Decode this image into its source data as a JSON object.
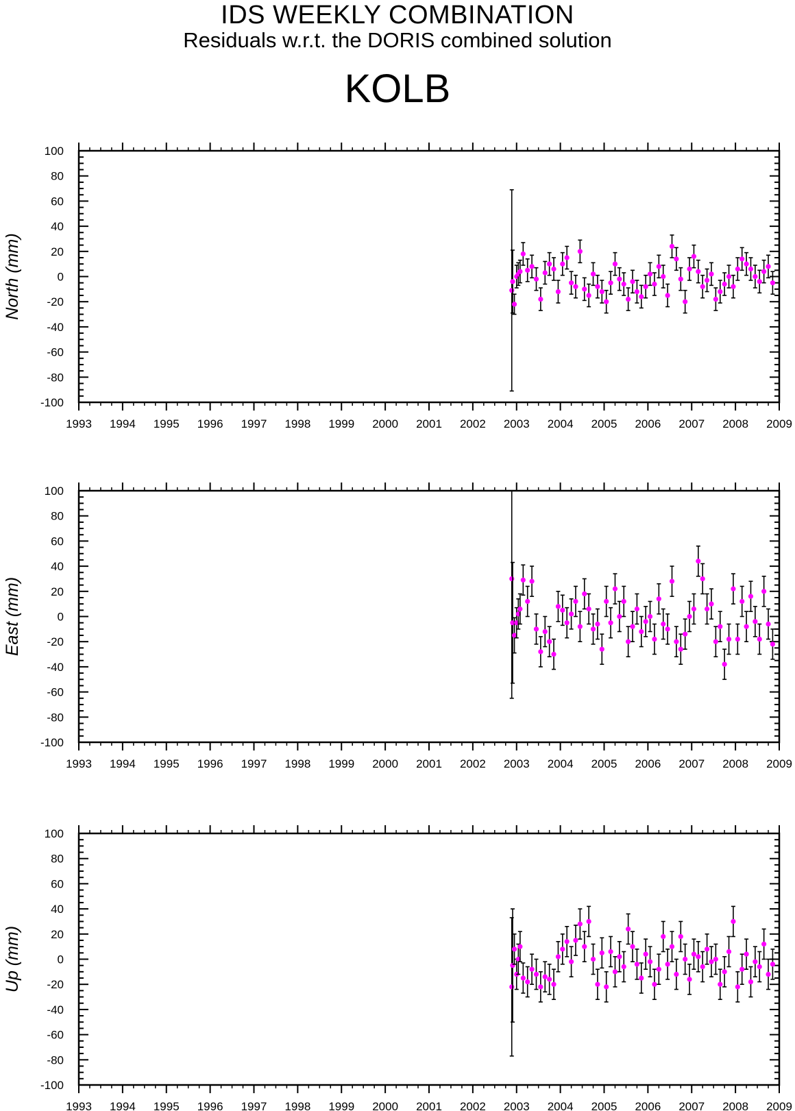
{
  "header": {
    "title": "IDS WEEKLY COMBINATION",
    "subtitle": "Residuals w.r.t. the DORIS combined solution",
    "station": "KOLB"
  },
  "colors": {
    "point": "#ff00ff",
    "errorbar": "#000000",
    "axes": "#000000"
  },
  "chart_data": [
    {
      "type": "scatter",
      "title": "",
      "ylabel": "North (mm)",
      "xlabel": "",
      "xlim": [
        1993,
        2009
      ],
      "ylim": [
        -100,
        100
      ],
      "x_ticks": [
        "1993",
        "1994",
        "1995",
        "1996",
        "1997",
        "1998",
        "1999",
        "2000",
        "2001",
        "2002",
        "2003",
        "2004",
        "2005",
        "2006",
        "2007",
        "2008",
        "2009"
      ],
      "y_ticks": [
        "100",
        "80",
        "60",
        "40",
        "20",
        "0",
        "-20",
        "-40",
        "-60",
        "-80",
        "-100"
      ],
      "series": [
        {
          "x": [
            2002.89,
            2002.91,
            2002.95,
            2003.0,
            2003.04,
            2003.08,
            2003.15,
            2003.25,
            2003.35,
            2003.45,
            2003.55,
            2003.65,
            2003.75,
            2003.85,
            2003.95,
            2004.05,
            2004.15,
            2004.25,
            2004.35,
            2004.45,
            2004.55,
            2004.65,
            2004.75,
            2004.85,
            2004.95,
            2005.05,
            2005.15,
            2005.25,
            2005.35,
            2005.45,
            2005.55,
            2005.65,
            2005.75,
            2005.85,
            2005.95,
            2006.05,
            2006.15,
            2006.25,
            2006.35,
            2006.45,
            2006.55,
            2006.65,
            2006.75,
            2006.85,
            2006.95,
            2007.05,
            2007.15,
            2007.25,
            2007.35,
            2007.45,
            2007.55,
            2007.65,
            2007.75,
            2007.85,
            2007.95,
            2008.05,
            2008.15,
            2008.25,
            2008.35,
            2008.45,
            2008.55,
            2008.65,
            2008.75,
            2008.85
          ],
          "y": [
            -11,
            -4,
            -22,
            0,
            2,
            4,
            18,
            5,
            8,
            -2,
            -18,
            3,
            10,
            6,
            -12,
            10,
            15,
            -5,
            -8,
            20,
            -10,
            -15,
            2,
            -8,
            -12,
            -20,
            -5,
            10,
            -2,
            -6,
            -18,
            -4,
            -12,
            -16,
            -8,
            2,
            -6,
            8,
            0,
            -15,
            24,
            14,
            -2,
            -20,
            6,
            16,
            4,
            -8,
            -3,
            2,
            -18,
            -12,
            -6,
            0,
            -8,
            6,
            14,
            10,
            6,
            0,
            -4,
            4,
            8,
            -5
          ],
          "err": [
            80,
            25,
            8,
            9,
            9,
            9,
            9,
            9,
            9,
            9,
            9,
            9,
            9,
            9,
            9,
            9,
            9,
            9,
            9,
            9,
            9,
            9,
            9,
            9,
            9,
            9,
            9,
            9,
            9,
            9,
            9,
            9,
            9,
            9,
            9,
            9,
            9,
            9,
            9,
            9,
            9,
            9,
            9,
            9,
            9,
            9,
            9,
            9,
            9,
            9,
            9,
            9,
            9,
            9,
            9,
            9,
            9,
            9,
            9,
            9,
            9,
            9,
            9,
            9
          ]
        }
      ]
    },
    {
      "type": "scatter",
      "title": "",
      "ylabel": "East (mm)",
      "xlabel": "",
      "xlim": [
        1993,
        2009
      ],
      "ylim": [
        -100,
        100
      ],
      "x_ticks": [
        "1993",
        "1994",
        "1995",
        "1996",
        "1997",
        "1998",
        "1999",
        "2000",
        "2001",
        "2002",
        "2003",
        "2004",
        "2005",
        "2006",
        "2007",
        "2008",
        "2009"
      ],
      "y_ticks": [
        "100",
        "80",
        "60",
        "40",
        "20",
        "0",
        "-20",
        "-40",
        "-60",
        "-80",
        "-100"
      ],
      "series": [
        {
          "x": [
            2002.89,
            2002.91,
            2002.95,
            2003.0,
            2003.04,
            2003.08,
            2003.15,
            2003.25,
            2003.35,
            2003.45,
            2003.55,
            2003.65,
            2003.75,
            2003.85,
            2003.95,
            2004.05,
            2004.15,
            2004.25,
            2004.35,
            2004.45,
            2004.55,
            2004.65,
            2004.75,
            2004.85,
            2004.95,
            2005.05,
            2005.15,
            2005.25,
            2005.35,
            2005.45,
            2005.55,
            2005.65,
            2005.75,
            2005.85,
            2005.95,
            2006.05,
            2006.15,
            2006.25,
            2006.35,
            2006.45,
            2006.55,
            2006.65,
            2006.75,
            2006.85,
            2006.95,
            2007.05,
            2007.15,
            2007.25,
            2007.35,
            2007.45,
            2007.55,
            2007.65,
            2007.75,
            2007.85,
            2007.95,
            2008.05,
            2008.15,
            2008.25,
            2008.35,
            2008.45,
            2008.55,
            2008.65,
            2008.75,
            2008.85
          ],
          "y": [
            30,
            -5,
            -15,
            -5,
            2,
            6,
            29,
            12,
            28,
            -10,
            -28,
            -12,
            -20,
            -30,
            8,
            5,
            -5,
            2,
            12,
            -8,
            18,
            6,
            -10,
            -6,
            -26,
            12,
            -5,
            22,
            0,
            12,
            -20,
            -8,
            6,
            -12,
            -4,
            0,
            -18,
            14,
            -6,
            -10,
            28,
            -20,
            -26,
            -14,
            0,
            6,
            44,
            30,
            6,
            10,
            -20,
            -8,
            -38,
            -18,
            22,
            -18,
            12,
            -8,
            16,
            -4,
            -18,
            20,
            -6,
            -22
          ],
          "err": [
            95,
            48,
            14,
            12,
            12,
            12,
            12,
            12,
            12,
            12,
            12,
            12,
            12,
            12,
            12,
            12,
            12,
            12,
            12,
            12,
            12,
            12,
            12,
            12,
            12,
            12,
            12,
            12,
            12,
            12,
            12,
            12,
            12,
            12,
            12,
            12,
            12,
            12,
            12,
            12,
            12,
            12,
            12,
            12,
            12,
            12,
            12,
            12,
            12,
            12,
            12,
            12,
            12,
            12,
            12,
            12,
            12,
            12,
            12,
            12,
            12,
            12,
            12,
            12
          ]
        }
      ]
    },
    {
      "type": "scatter",
      "title": "",
      "ylabel": "Up (mm)",
      "xlabel": "",
      "xlim": [
        1993,
        2009
      ],
      "ylim": [
        -100,
        100
      ],
      "x_ticks": [
        "1993",
        "1994",
        "1995",
        "1996",
        "1997",
        "1998",
        "1999",
        "2000",
        "2001",
        "2002",
        "2003",
        "2004",
        "2005",
        "2006",
        "2007",
        "2008",
        "2009"
      ],
      "y_ticks": [
        "100",
        "80",
        "60",
        "40",
        "20",
        "0",
        "-20",
        "-40",
        "-60",
        "-80",
        "-100"
      ],
      "series": [
        {
          "x": [
            2002.89,
            2002.91,
            2002.95,
            2003.0,
            2003.04,
            2003.08,
            2003.15,
            2003.25,
            2003.35,
            2003.45,
            2003.55,
            2003.65,
            2003.75,
            2003.85,
            2003.95,
            2004.05,
            2004.15,
            2004.25,
            2004.35,
            2004.45,
            2004.55,
            2004.65,
            2004.75,
            2004.85,
            2004.95,
            2005.05,
            2005.15,
            2005.25,
            2005.35,
            2005.45,
            2005.55,
            2005.65,
            2005.75,
            2005.85,
            2005.95,
            2006.05,
            2006.15,
            2006.25,
            2006.35,
            2006.45,
            2006.55,
            2006.65,
            2006.75,
            2006.85,
            2006.95,
            2007.05,
            2007.15,
            2007.25,
            2007.35,
            2007.45,
            2007.55,
            2007.65,
            2007.75,
            2007.85,
            2007.95,
            2008.05,
            2008.15,
            2008.25,
            2008.35,
            2008.45,
            2008.55,
            2008.65,
            2008.75,
            2008.85
          ],
          "y": [
            -22,
            -5,
            8,
            -12,
            0,
            10,
            -15,
            -18,
            -8,
            -12,
            -22,
            -14,
            -16,
            -20,
            2,
            8,
            14,
            -2,
            15,
            28,
            10,
            30,
            0,
            -20,
            5,
            -22,
            6,
            -10,
            2,
            -6,
            24,
            10,
            -4,
            -15,
            4,
            -2,
            -20,
            -8,
            18,
            -4,
            10,
            -12,
            18,
            0,
            -16,
            4,
            2,
            -6,
            8,
            -2,
            0,
            -20,
            -10,
            6,
            30,
            -22,
            -8,
            4,
            -18,
            -2,
            -6,
            12,
            -12,
            -4
          ],
          "err": [
            55,
            45,
            12,
            12,
            12,
            12,
            12,
            12,
            12,
            12,
            12,
            12,
            12,
            12,
            12,
            12,
            12,
            12,
            12,
            12,
            12,
            12,
            12,
            12,
            12,
            12,
            12,
            12,
            12,
            12,
            12,
            12,
            12,
            12,
            12,
            12,
            12,
            12,
            12,
            12,
            12,
            12,
            12,
            12,
            12,
            12,
            12,
            12,
            12,
            12,
            12,
            12,
            12,
            12,
            12,
            12,
            12,
            12,
            12,
            12,
            12,
            12,
            12,
            12
          ]
        }
      ]
    }
  ]
}
